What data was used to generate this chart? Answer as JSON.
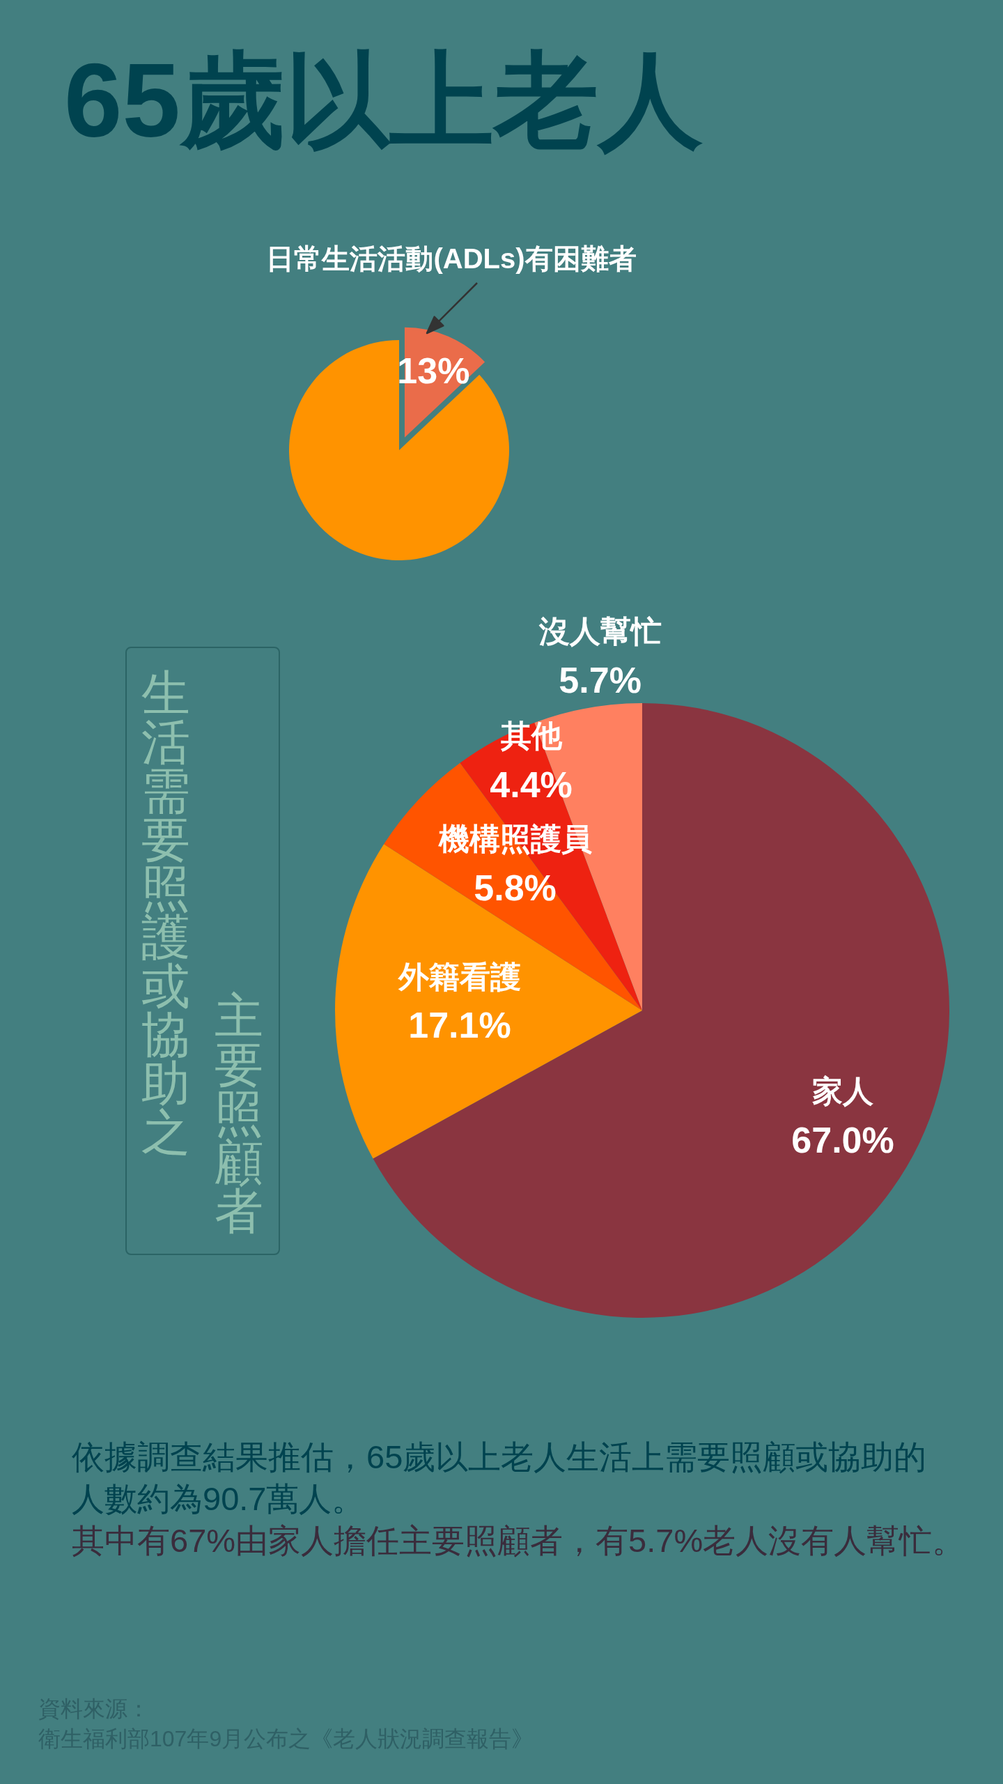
{
  "chart_data": [
    {
      "type": "pie",
      "title": "65歲以上老人",
      "categories": [
        "日常生活活動(ADLs)有困難者",
        null
      ],
      "values": [
        13,
        87
      ],
      "colors": [
        "#ea6c4a",
        "#ff9300"
      ],
      "value_labels": [
        "13%",
        null
      ]
    },
    {
      "type": "pie",
      "title": "生活需要照護或協助之主要照顧者",
      "categories": [
        "家人",
        "外籍看護",
        "機構照護員",
        "其他",
        "沒人幫忙"
      ],
      "values": [
        67.0,
        17.1,
        5.8,
        4.4,
        5.7
      ],
      "colors": [
        "#8a3540",
        "#ff9300",
        "#ff5400",
        "#ee2211",
        "#ff8060"
      ],
      "value_labels": [
        "67.0%",
        "17.1%",
        "5.8%",
        "4.4%",
        "5.7%"
      ],
      "annotations": [
        "依據調查結果推估，65歲以上老人生活上需要照顧或協助的人數約為90.7萬人。",
        "其中有67%由家人擔任主要照顧者，有5.7%老人沒有人幫忙。",
        "資料來源：",
        "衛生福利部107年9月公布之《老人狀況調查報告》"
      ]
    }
  ]
}
